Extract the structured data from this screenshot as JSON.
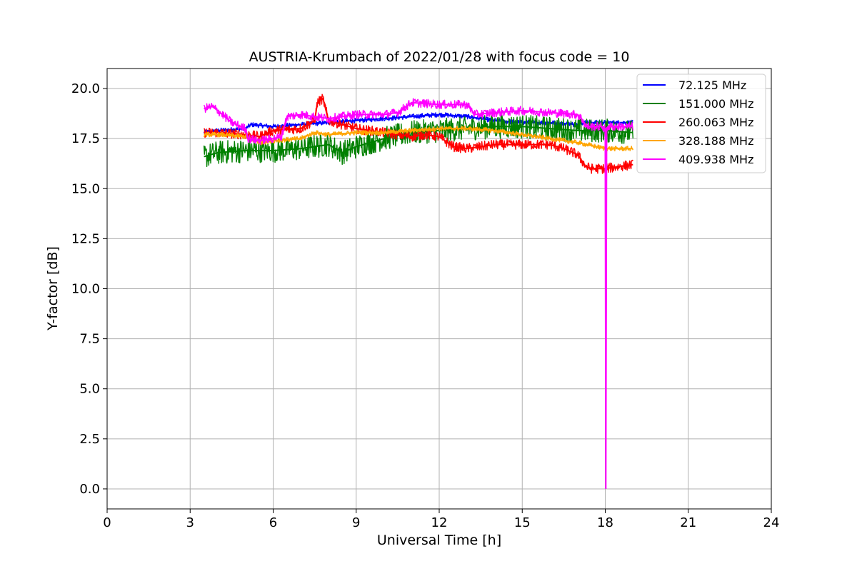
{
  "chart_data": {
    "type": "line",
    "title": "AUSTRIA-Krumbach of 2022/01/28 with focus code = 10",
    "xlabel": "Universal Time [h]",
    "ylabel": "Y-factor [dB]",
    "xlim": [
      0,
      24
    ],
    "ylim": [
      -1.0,
      21.0
    ],
    "xticks": [
      0,
      3,
      6,
      9,
      12,
      15,
      18,
      21,
      24
    ],
    "xtick_labels": [
      "0",
      "3",
      "6",
      "9",
      "12",
      "15",
      "18",
      "21",
      "24"
    ],
    "yticks": [
      0.0,
      2.5,
      5.0,
      7.5,
      10.0,
      12.5,
      15.0,
      17.5,
      20.0
    ],
    "ytick_labels": [
      "0.0",
      "2.5",
      "5.0",
      "7.5",
      "10.0",
      "12.5",
      "15.0",
      "17.5",
      "20.0"
    ],
    "grid": true,
    "legend_position": "top-right",
    "series": [
      {
        "name": " 72.125 MHz",
        "color": "#0000ff",
        "noise": 0.12,
        "x": [
          3.5,
          4.0,
          5.0,
          5.2,
          6.0,
          7.0,
          8.0,
          9.0,
          10.0,
          11.0,
          12.0,
          13.0,
          14.0,
          15.0,
          16.0,
          17.0,
          17.2,
          18.0,
          19.0
        ],
        "y": [
          17.8,
          17.9,
          18.0,
          18.2,
          18.1,
          18.2,
          18.3,
          18.4,
          18.5,
          18.6,
          18.7,
          18.6,
          18.4,
          18.3,
          18.3,
          18.2,
          18.3,
          18.3,
          18.3
        ]
      },
      {
        "name": "151.000 MHz",
        "color": "#008000",
        "noise": 0.6,
        "x": [
          3.5,
          4.0,
          5.0,
          6.0,
          7.0,
          8.0,
          8.5,
          9.0,
          10.0,
          11.0,
          12.0,
          13.0,
          14.0,
          15.0,
          16.0,
          17.0,
          18.0,
          19.0
        ],
        "y": [
          16.6,
          16.8,
          16.9,
          16.9,
          17.0,
          17.2,
          16.8,
          17.1,
          17.5,
          17.8,
          17.9,
          18.0,
          18.1,
          18.1,
          18.0,
          17.9,
          17.9,
          17.8
        ]
      },
      {
        "name": "260.063 MHz",
        "color": "#ff0000",
        "noise": 0.25,
        "x": [
          3.5,
          4.0,
          5.0,
          5.5,
          6.0,
          7.0,
          7.5,
          7.6,
          7.8,
          8.0,
          9.0,
          10.0,
          11.0,
          11.5,
          12.0,
          12.5,
          13.0,
          14.0,
          15.0,
          16.0,
          16.5,
          17.0,
          17.3,
          17.5,
          18.0,
          19.0
        ],
        "y": [
          17.8,
          17.8,
          17.7,
          17.6,
          17.9,
          18.0,
          18.4,
          19.3,
          19.5,
          18.4,
          18.0,
          17.8,
          17.6,
          17.7,
          17.6,
          17.1,
          17.0,
          17.2,
          17.2,
          17.2,
          17.0,
          16.7,
          16.1,
          16.0,
          16.0,
          16.2
        ]
      },
      {
        "name": "328.188 MHz",
        "color": "#ffa500",
        "noise": 0.12,
        "x": [
          3.5,
          4.0,
          5.0,
          5.5,
          6.0,
          7.0,
          7.5,
          8.0,
          9.0,
          10.0,
          11.0,
          12.0,
          13.0,
          14.0,
          15.0,
          16.0,
          17.0,
          18.0,
          19.0
        ],
        "y": [
          17.7,
          17.7,
          17.6,
          17.3,
          17.4,
          17.5,
          17.8,
          17.7,
          17.8,
          17.8,
          17.9,
          18.0,
          18.0,
          17.9,
          17.7,
          17.5,
          17.3,
          17.0,
          17.0
        ]
      },
      {
        "name": "409.938 MHz",
        "color": "#ff00ff",
        "noise": 0.22,
        "x": [
          3.5,
          3.8,
          4.0,
          4.5,
          5.0,
          5.1,
          5.5,
          6.0,
          6.3,
          6.5,
          7.0,
          8.0,
          9.0,
          10.0,
          10.5,
          11.0,
          12.0,
          13.0,
          13.3,
          14.0,
          15.0,
          16.0,
          17.0,
          17.2,
          17.3,
          17.9,
          18.0,
          18.02,
          18.05,
          18.1,
          19.0
        ],
        "y": [
          19.0,
          19.1,
          18.9,
          18.3,
          18.0,
          17.5,
          17.4,
          17.5,
          17.6,
          18.6,
          18.7,
          18.5,
          18.7,
          18.7,
          18.8,
          19.3,
          19.2,
          19.2,
          18.7,
          18.8,
          18.9,
          18.8,
          18.7,
          18.4,
          18.1,
          18.1,
          18.0,
          0.0,
          18.0,
          18.1,
          18.1
        ]
      }
    ]
  }
}
